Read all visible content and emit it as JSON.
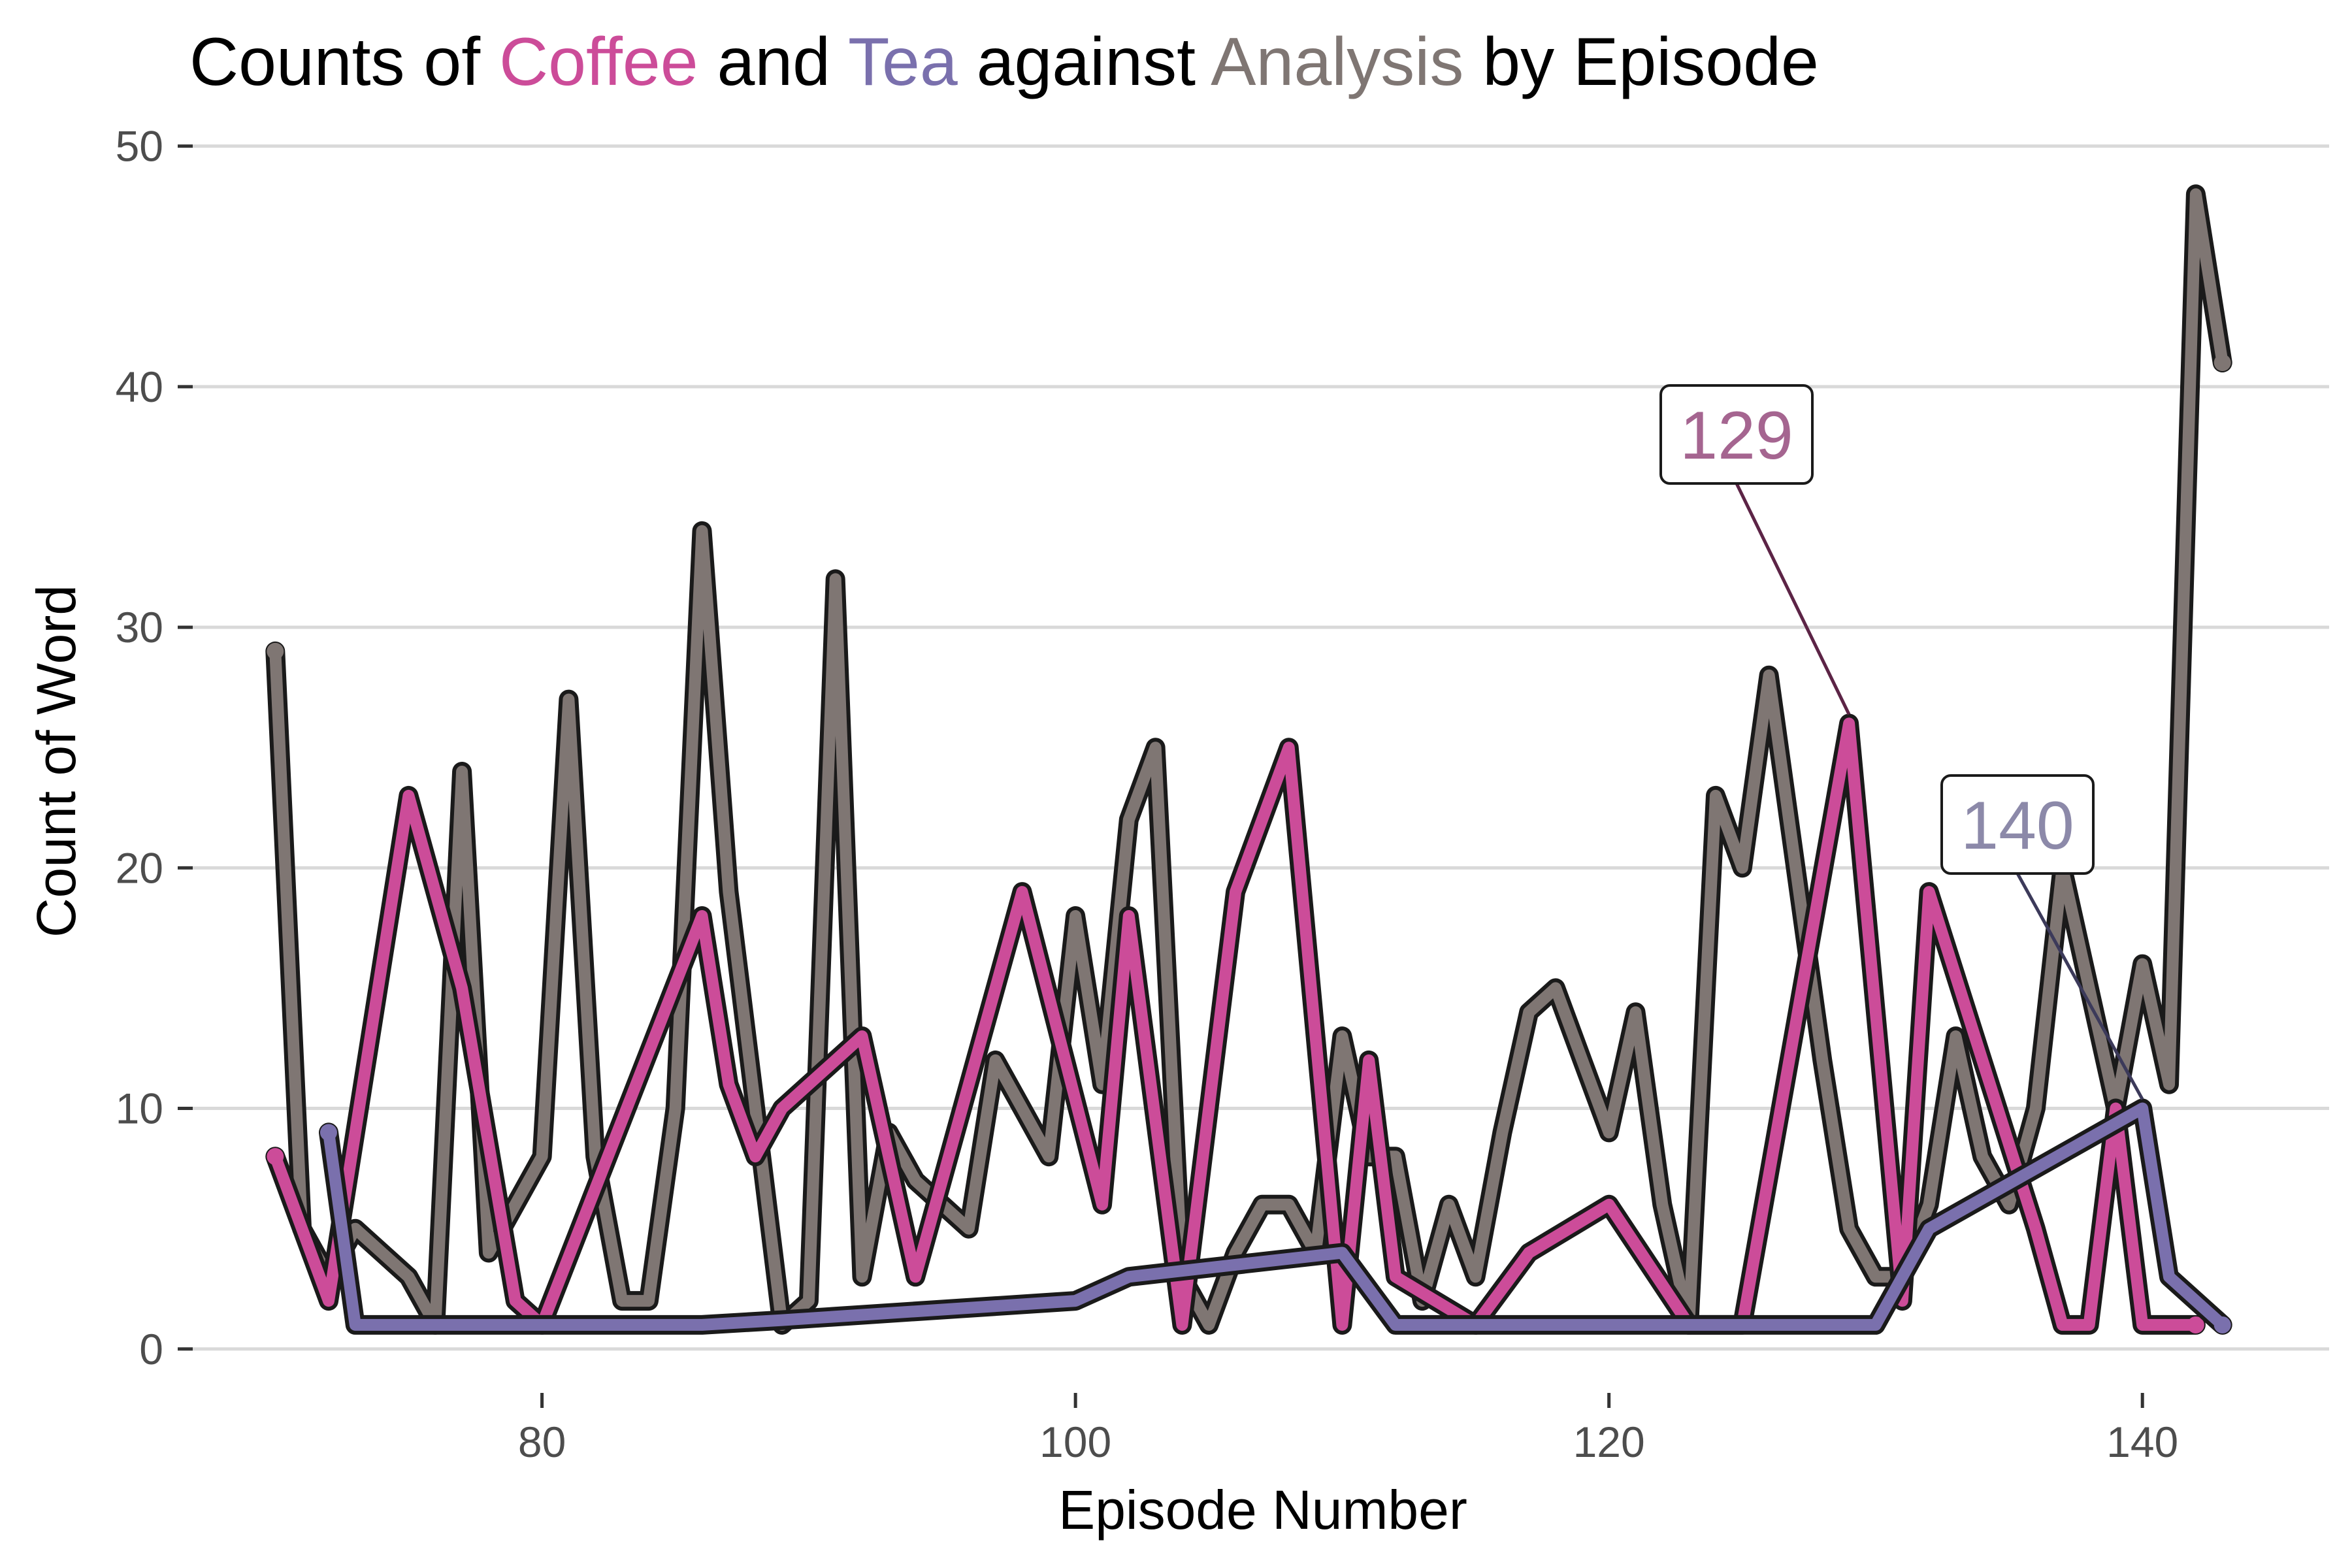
{
  "chart_data": {
    "type": "line",
    "title_parts": [
      {
        "text": "Counts of ",
        "color": "#000000"
      },
      {
        "text": "Coffee",
        "color": "#cc4c99"
      },
      {
        "text": " and ",
        "color": "#000000"
      },
      {
        "text": "Tea",
        "color": "#7a70ad"
      },
      {
        "text": " against ",
        "color": "#000000"
      },
      {
        "text": "Analysis",
        "color": "#7f7673"
      },
      {
        "text": " by Episode",
        "color": "#000000"
      }
    ],
    "xlabel": "Episode Number",
    "ylabel": "Count of Word",
    "xlim": [
      66,
      147
    ],
    "ylim": [
      -1.5,
      52
    ],
    "x_ticks": [
      80,
      100,
      120,
      140
    ],
    "y_ticks": [
      0,
      10,
      20,
      30,
      40,
      50
    ],
    "grid": "horizontal major gridlines",
    "legend": "none",
    "outline_color": "#1a1a1a",
    "series": [
      {
        "key": "analysis",
        "color": "#7f7673",
        "x": [
          70,
          71,
          72,
          73,
          74,
          75,
          76,
          77,
          78,
          79,
          80,
          81,
          82,
          83,
          84,
          85,
          86,
          87,
          88,
          89,
          90,
          91,
          92,
          93,
          94,
          95,
          96,
          97,
          98,
          99,
          100,
          101,
          102,
          103,
          104,
          105,
          106,
          107,
          108,
          109,
          110,
          111,
          112,
          113,
          114,
          115,
          116,
          117,
          118,
          119,
          120,
          121,
          122,
          123,
          124,
          125,
          126,
          127,
          128,
          129,
          130,
          131,
          132,
          133,
          134,
          135,
          136,
          137,
          138,
          139,
          140,
          141,
          142,
          143
        ],
        "y": [
          29,
          5,
          3,
          5,
          4,
          3,
          1,
          24,
          4,
          6,
          8,
          27,
          8,
          2,
          2,
          10,
          34,
          19,
          10,
          1,
          2,
          32,
          3,
          9,
          7,
          6,
          5,
          12,
          10,
          8,
          18,
          11,
          22,
          25,
          3,
          1,
          4,
          6,
          6,
          4,
          13,
          8,
          8,
          2,
          6,
          3,
          9,
          14,
          15,
          12,
          9,
          14,
          6,
          1,
          23,
          20,
          28,
          20,
          12,
          5,
          3,
          3,
          6,
          13,
          8,
          6,
          10,
          20,
          15,
          10,
          16,
          11,
          48,
          41
        ]
      },
      {
        "key": "coffee",
        "color": "#cc4c99",
        "x": [
          70,
          72,
          75,
          77,
          79,
          80,
          86,
          87,
          88,
          89,
          92,
          94,
          98,
          101,
          102,
          104,
          106,
          108,
          110,
          111,
          112,
          115,
          117,
          120,
          123,
          125,
          129,
          131,
          132,
          136,
          137,
          138,
          139,
          140,
          142
        ],
        "y": [
          8,
          2,
          23,
          15,
          2,
          1,
          18,
          11,
          8,
          10,
          13,
          3,
          19,
          6,
          18,
          1,
          19,
          25,
          1,
          12,
          3,
          1,
          4,
          6,
          1,
          1,
          26,
          2,
          19,
          5,
          1,
          1,
          10,
          1,
          1
        ]
      },
      {
        "key": "tea",
        "color": "#7a70ad",
        "x": [
          72,
          73,
          86,
          89,
          100,
          102,
          110,
          112,
          130,
          132,
          140,
          141,
          143
        ],
        "y": [
          9,
          1,
          1,
          1.2,
          2,
          3,
          4,
          1,
          1,
          5,
          10,
          3,
          1
        ]
      }
    ],
    "callouts": [
      {
        "label": "129",
        "color": "#a56590",
        "line_color": "#5c2446",
        "x": 129,
        "y": 26
      },
      {
        "label": "140",
        "color": "#8c89a9",
        "line_color": "#3c3a5a",
        "x": 140,
        "y": 10
      }
    ]
  }
}
